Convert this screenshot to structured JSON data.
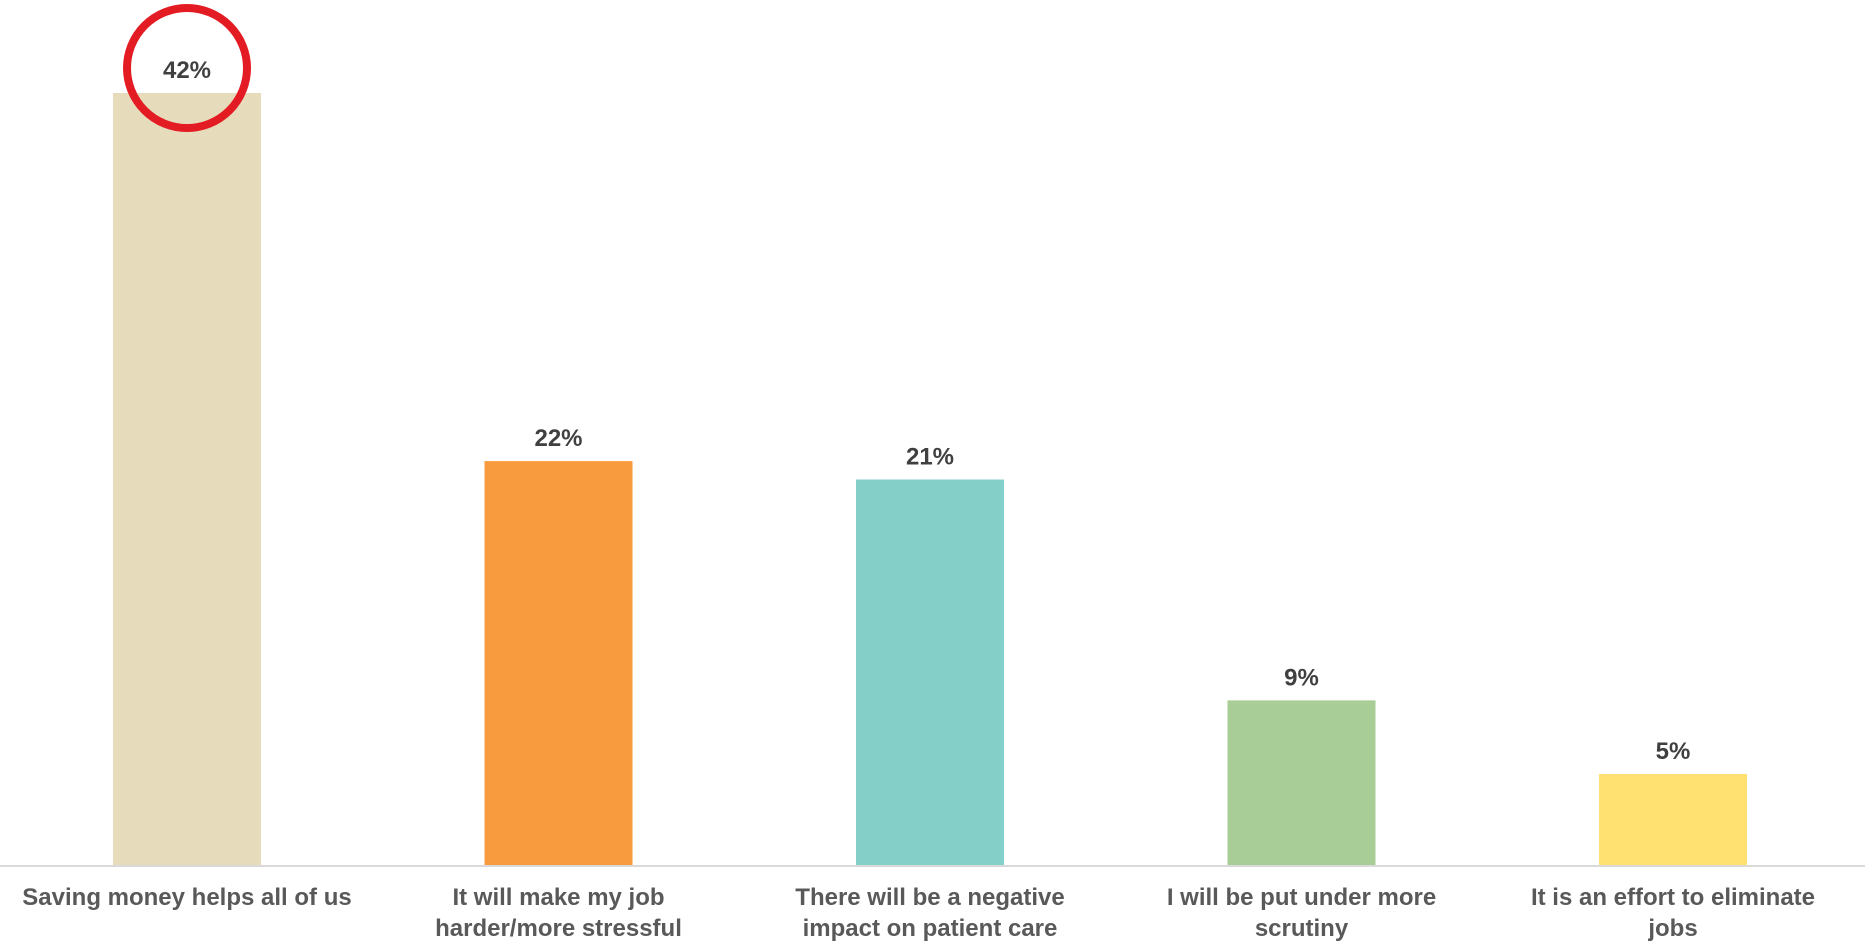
{
  "chart_data": {
    "type": "bar",
    "categories": [
      [
        "Saving money helps all of us"
      ],
      [
        "It will make my job",
        "harder/more stressful"
      ],
      [
        "There will be a negative",
        "impact on patient care"
      ],
      [
        "I will be put under more",
        "scrutiny"
      ],
      [
        "It is an effort to eliminate",
        "jobs"
      ]
    ],
    "values": [
      42,
      22,
      21,
      9,
      5
    ],
    "data_labels": [
      "42%",
      "22%",
      "21%",
      "9%",
      "5%"
    ],
    "bar_colors": [
      "#E6DBBA",
      "#F79B3E",
      "#84CFC8",
      "#A8CD96",
      "#FFE172"
    ],
    "ylim": [
      0,
      42
    ],
    "unit": "%",
    "gridlines": false,
    "highlight": {
      "category_index": 0,
      "shape": "circle",
      "color": "#E31B23"
    }
  }
}
